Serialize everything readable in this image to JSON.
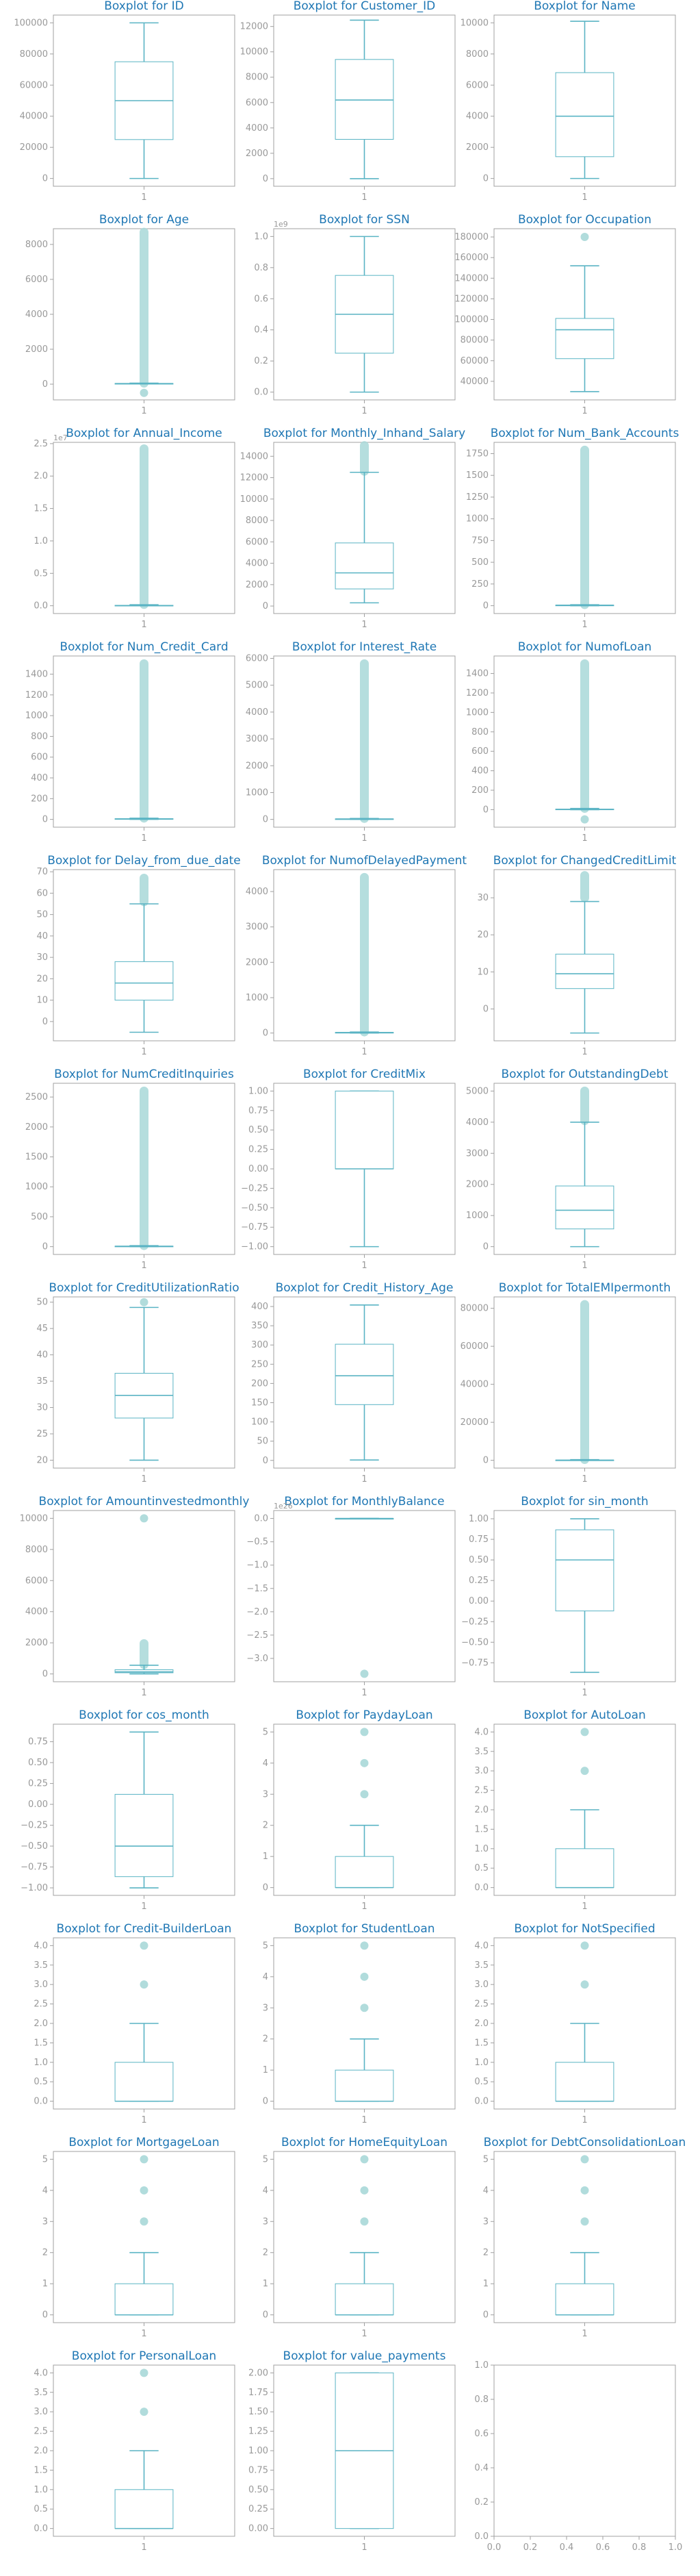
{
  "style": {
    "title_color": "#1f77b4",
    "box_color": "#5ab4c4",
    "flier_color": "#a8d8d8",
    "axis_color": "#a0a0a0",
    "tick_label_color": "#999999"
  },
  "chart_data": [
    {
      "type": "box",
      "title": "Boxplot for ID",
      "category": "1",
      "ylim": [
        -5000,
        105000
      ],
      "yticks": [
        0,
        20000,
        40000,
        60000,
        80000,
        100000
      ],
      "ytick_labels": [
        "0",
        "20000",
        "40000",
        "60000",
        "80000",
        "100000"
      ],
      "min": 0,
      "q1": 25000,
      "median": 50000,
      "q3": 75000,
      "max": 100000,
      "fliers": []
    },
    {
      "type": "box",
      "title": "Boxplot for Customer_ID",
      "category": "1",
      "ylim": [
        -600,
        12900
      ],
      "yticks": [
        0,
        2000,
        4000,
        6000,
        8000,
        10000,
        12000
      ],
      "ytick_labels": [
        "0",
        "2000",
        "4000",
        "6000",
        "8000",
        "10000",
        "12000"
      ],
      "min": 0,
      "q1": 3100,
      "median": 6200,
      "q3": 9400,
      "max": 12500,
      "fliers": []
    },
    {
      "type": "box",
      "title": "Boxplot for Name",
      "category": "1",
      "ylim": [
        -500,
        10500
      ],
      "yticks": [
        0,
        2000,
        4000,
        6000,
        8000,
        10000
      ],
      "ytick_labels": [
        "0",
        "2000",
        "4000",
        "6000",
        "8000",
        "10000"
      ],
      "min": 0,
      "q1": 1400,
      "median": 4000,
      "q3": 6800,
      "max": 10100,
      "fliers": []
    },
    {
      "type": "box",
      "title": "Boxplot for Age",
      "category": "1",
      "ylim": [
        -900,
        8900
      ],
      "yticks": [
        0,
        2000,
        4000,
        6000,
        8000
      ],
      "ytick_labels": [
        "0",
        "2000",
        "4000",
        "6000",
        "8000"
      ],
      "min": 14,
      "q1": 25,
      "median": 33,
      "q3": 42,
      "max": 56,
      "fliers": [
        -500,
        "dense:60:8700"
      ]
    },
    {
      "type": "box",
      "title": "Boxplot for SSN",
      "category": "1",
      "offset_text": "1e9",
      "ylim": [
        -0.05,
        1.05
      ],
      "yticks": [
        0,
        0.2,
        0.4,
        0.6,
        0.8,
        1.0
      ],
      "ytick_labels": [
        "0.0",
        "0.2",
        "0.4",
        "0.6",
        "0.8",
        "1.0"
      ],
      "min": 0.0,
      "q1": 0.25,
      "median": 0.5,
      "q3": 0.75,
      "max": 1.0,
      "fliers": []
    },
    {
      "type": "box",
      "title": "Boxplot for Occupation",
      "category": "1",
      "ylim": [
        22000,
        188000
      ],
      "yticks": [
        40000,
        60000,
        80000,
        100000,
        120000,
        140000,
        160000,
        180000
      ],
      "ytick_labels": [
        "40000",
        "60000",
        "80000",
        "100000",
        "120000",
        "140000",
        "160000",
        "180000"
      ],
      "min": 30000,
      "q1": 62000,
      "median": 90000,
      "q3": 101000,
      "max": 152000,
      "fliers": [
        180000
      ]
    },
    {
      "type": "box",
      "title": "Boxplot for Annual_Income",
      "category": "1",
      "offset_text": "1e7",
      "ylim": [
        -0.12,
        2.52
      ],
      "yticks": [
        0,
        0.5,
        1.0,
        1.5,
        2.0,
        2.5
      ],
      "ytick_labels": [
        "0.0",
        "0.5",
        "1.0",
        "1.5",
        "2.0",
        "2.5"
      ],
      "min": 0.0,
      "q1": 0.002,
      "median": 0.004,
      "q3": 0.007,
      "max": 0.015,
      "fliers": [
        "dense:0.02:2.42"
      ]
    },
    {
      "type": "box",
      "title": "Boxplot for Monthly_Inhand_Salary",
      "category": "1",
      "ylim": [
        -700,
        15300
      ],
      "yticks": [
        0,
        2000,
        4000,
        6000,
        8000,
        10000,
        12000,
        14000
      ],
      "ytick_labels": [
        "0",
        "2000",
        "4000",
        "6000",
        "8000",
        "10000",
        "12000",
        "14000"
      ],
      "min": 300,
      "q1": 1600,
      "median": 3100,
      "q3": 5900,
      "max": 12500,
      "fliers": [
        "dense:12600:15000"
      ]
    },
    {
      "type": "box",
      "title": "Boxplot for Num_Bank_Accounts",
      "category": "1",
      "ylim": [
        -90,
        1880
      ],
      "yticks": [
        0,
        250,
        500,
        750,
        1000,
        1250,
        1500,
        1750
      ],
      "ytick_labels": [
        "0",
        "250",
        "500",
        "750",
        "1000",
        "1250",
        "1500",
        "1750"
      ],
      "min": 0,
      "q1": 3,
      "median": 6,
      "q3": 7,
      "max": 11,
      "fliers": [
        "dense:12:1790"
      ]
    },
    {
      "type": "box",
      "title": "Boxplot for Num_Credit_Card",
      "category": "1",
      "ylim": [
        -75,
        1575
      ],
      "yticks": [
        0,
        200,
        400,
        600,
        800,
        1000,
        1200,
        1400
      ],
      "ytick_labels": [
        "0",
        "200",
        "400",
        "600",
        "800",
        "1000",
        "1200",
        "1400"
      ],
      "min": 0,
      "q1": 4,
      "median": 5,
      "q3": 7,
      "max": 11,
      "fliers": [
        "dense:12:1500"
      ]
    },
    {
      "type": "box",
      "title": "Boxplot for Interest_Rate",
      "category": "1",
      "ylim": [
        -290,
        6090
      ],
      "yticks": [
        0,
        1000,
        2000,
        3000,
        4000,
        5000,
        6000
      ],
      "ytick_labels": [
        "0",
        "1000",
        "2000",
        "3000",
        "4000",
        "5000",
        "6000"
      ],
      "min": 1,
      "q1": 8,
      "median": 14,
      "q3": 20,
      "max": 34,
      "fliers": [
        "dense:35:5800"
      ]
    },
    {
      "type": "box",
      "title": "Boxplot for NumofLoan",
      "category": "1",
      "ylim": [
        -180,
        1580
      ],
      "yticks": [
        0,
        200,
        400,
        600,
        800,
        1000,
        1200,
        1400
      ],
      "ytick_labels": [
        "0",
        "200",
        "400",
        "600",
        "800",
        "1000",
        "1200",
        "1400"
      ],
      "min": 0,
      "q1": 2,
      "median": 3,
      "q3": 6,
      "max": 12,
      "fliers": [
        -100,
        "dense:13:1500"
      ]
    },
    {
      "type": "box",
      "title": "Boxplot for Delay_from_due_date",
      "category": "1",
      "ylim": [
        -9,
        71
      ],
      "yticks": [
        0,
        10,
        20,
        30,
        40,
        50,
        60,
        70
      ],
      "ytick_labels": [
        "0",
        "10",
        "20",
        "30",
        "40",
        "50",
        "60",
        "70"
      ],
      "min": -5,
      "q1": 10,
      "median": 18,
      "q3": 28,
      "max": 55,
      "fliers": [
        "dense:56:67"
      ]
    },
    {
      "type": "box",
      "title": "Boxplot for NumofDelayedPayment",
      "category": "1",
      "ylim": [
        -220,
        4620
      ],
      "yticks": [
        0,
        1000,
        2000,
        3000,
        4000
      ],
      "ytick_labels": [
        "0",
        "1000",
        "2000",
        "3000",
        "4000"
      ],
      "min": 0,
      "q1": 9,
      "median": 14,
      "q3": 18,
      "max": 28,
      "fliers": [
        "dense:30:4400"
      ]
    },
    {
      "type": "box",
      "title": "Boxplot for ChangedCreditLimit",
      "category": "1",
      "ylim": [
        -8.6,
        37.6
      ],
      "yticks": [
        0,
        10,
        20,
        30
      ],
      "ytick_labels": [
        "0",
        "10",
        "20",
        "30"
      ],
      "min": -6.5,
      "q1": 5.5,
      "median": 9.5,
      "q3": 14.8,
      "max": 29,
      "fliers": [
        "dense:30:36"
      ]
    },
    {
      "type": "box",
      "title": "Boxplot for NumCreditInquiries",
      "category": "1",
      "ylim": [
        -130,
        2730
      ],
      "yticks": [
        0,
        500,
        1000,
        1500,
        2000,
        2500
      ],
      "ytick_labels": [
        "0",
        "500",
        "1000",
        "1500",
        "2000",
        "2500"
      ],
      "min": 0,
      "q1": 3,
      "median": 6,
      "q3": 9,
      "max": 17,
      "fliers": [
        "dense:18:2600"
      ]
    },
    {
      "type": "box",
      "title": "Boxplot for CreditMix",
      "category": "1",
      "ylim": [
        -1.1,
        1.1
      ],
      "yticks": [
        -1.0,
        -0.75,
        -0.5,
        -0.25,
        0,
        0.25,
        0.5,
        0.75,
        1.0
      ],
      "ytick_labels": [
        "−1.00",
        "−0.75",
        "−0.50",
        "−0.25",
        "0.00",
        "0.25",
        "0.50",
        "0.75",
        "1.00"
      ],
      "min": -1,
      "q1": 0,
      "median": 0,
      "q3": 1,
      "max": 1,
      "fliers": []
    },
    {
      "type": "box",
      "title": "Boxplot for OutstandingDebt",
      "category": "1",
      "ylim": [
        -250,
        5250
      ],
      "yticks": [
        0,
        1000,
        2000,
        3000,
        4000,
        5000
      ],
      "ytick_labels": [
        "0",
        "1000",
        "2000",
        "3000",
        "4000",
        "5000"
      ],
      "min": 0,
      "q1": 570,
      "median": 1170,
      "q3": 1950,
      "max": 4000,
      "fliers": [
        "dense:4050:5000"
      ]
    },
    {
      "type": "box",
      "title": "Boxplot for CreditUtilizationRatio",
      "category": "1",
      "ylim": [
        18.5,
        51
      ],
      "yticks": [
        20,
        25,
        30,
        35,
        40,
        45,
        50
      ],
      "ytick_labels": [
        "20",
        "25",
        "30",
        "35",
        "40",
        "45",
        "50"
      ],
      "min": 20,
      "q1": 28,
      "median": 32.3,
      "q3": 36.5,
      "max": 49,
      "fliers": [
        50
      ]
    },
    {
      "type": "box",
      "title": "Boxplot for Credit_History_Age",
      "category": "1",
      "ylim": [
        -20,
        425
      ],
      "yticks": [
        0,
        50,
        100,
        150,
        200,
        250,
        300,
        350,
        400
      ],
      "ytick_labels": [
        "0",
        "50",
        "100",
        "150",
        "200",
        "250",
        "300",
        "350",
        "400"
      ],
      "min": 1,
      "q1": 145,
      "median": 220,
      "q3": 302,
      "max": 404,
      "fliers": []
    },
    {
      "type": "box",
      "title": "Boxplot for TotalEMIpermonth",
      "category": "1",
      "ylim": [
        -4100,
        86000
      ],
      "yticks": [
        0,
        20000,
        40000,
        60000,
        80000
      ],
      "ytick_labels": [
        "0",
        "20000",
        "40000",
        "60000",
        "80000"
      ],
      "min": 0,
      "q1": 30,
      "median": 70,
      "q3": 160,
      "max": 350,
      "fliers": [
        "dense:400:82000"
      ]
    },
    {
      "type": "box",
      "title": "Boxplot for Amountinvestedmonthly",
      "category": "1",
      "ylim": [
        -500,
        10500
      ],
      "yticks": [
        0,
        2000,
        4000,
        6000,
        8000,
        10000
      ],
      "ytick_labels": [
        "0",
        "2000",
        "4000",
        "6000",
        "8000",
        "10000"
      ],
      "min": 0,
      "q1": 75,
      "median": 135,
      "q3": 270,
      "max": 560,
      "fliers": [
        "dense:600:1950",
        10000
      ]
    },
    {
      "type": "box",
      "title": "Boxplot for MonthlyBalance",
      "category": "1",
      "offset_text": "1e26",
      "ylim": [
        -3.5,
        0.17
      ],
      "yticks": [
        0,
        -0.5,
        -1.0,
        -1.5,
        -2.0,
        -2.5,
        -3.0
      ],
      "ytick_labels": [
        "0.0",
        "−0.5",
        "−1.0",
        "−1.5",
        "−2.0",
        "−2.5",
        "−3.0"
      ],
      "min": 0,
      "q1": 0,
      "median": 0,
      "q3": 0,
      "max": 0,
      "fliers": [
        -3.33
      ]
    },
    {
      "type": "box",
      "title": "Boxplot for sin_month",
      "category": "1",
      "ylim": [
        -0.98,
        1.1
      ],
      "yticks": [
        -0.75,
        -0.5,
        -0.25,
        0,
        0.25,
        0.5,
        0.75,
        1.0
      ],
      "ytick_labels": [
        "−0.75",
        "−0.50",
        "−0.25",
        "0.00",
        "0.25",
        "0.50",
        "0.75",
        "1.00"
      ],
      "min": -0.866,
      "q1": -0.12,
      "median": 0.5,
      "q3": 0.866,
      "max": 1.0,
      "fliers": []
    },
    {
      "type": "box",
      "title": "Boxplot for cos_month",
      "category": "1",
      "ylim": [
        -1.09,
        0.96
      ],
      "yticks": [
        -1.0,
        -0.75,
        -0.5,
        -0.25,
        0,
        0.25,
        0.5,
        0.75
      ],
      "ytick_labels": [
        "−1.00",
        "−0.75",
        "−0.50",
        "−0.25",
        "0.00",
        "0.25",
        "0.50",
        "0.75"
      ],
      "min": -1.0,
      "q1": -0.866,
      "median": -0.5,
      "q3": 0.12,
      "max": 0.866,
      "fliers": []
    },
    {
      "type": "box",
      "title": "Boxplot for PaydayLoan",
      "category": "1",
      "ylim": [
        -0.25,
        5.25
      ],
      "yticks": [
        0,
        1,
        2,
        3,
        4,
        5
      ],
      "ytick_labels": [
        "0",
        "1",
        "2",
        "3",
        "4",
        "5"
      ],
      "min": 0,
      "q1": 0,
      "median": 0,
      "q3": 1,
      "max": 2,
      "fliers": [
        3,
        4,
        5
      ]
    },
    {
      "type": "box",
      "title": "Boxplot for AutoLoan",
      "category": "1",
      "ylim": [
        -0.2,
        4.2
      ],
      "yticks": [
        0,
        0.5,
        1,
        1.5,
        2,
        2.5,
        3,
        3.5,
        4
      ],
      "ytick_labels": [
        "0.0",
        "0.5",
        "1.0",
        "1.5",
        "2.0",
        "2.5",
        "3.0",
        "3.5",
        "4.0"
      ],
      "min": 0,
      "q1": 0,
      "median": 0,
      "q3": 1,
      "max": 2,
      "fliers": [
        3,
        4
      ]
    },
    {
      "type": "box",
      "title": "Boxplot for Credit-BuilderLoan",
      "category": "1",
      "ylim": [
        -0.2,
        4.2
      ],
      "yticks": [
        0,
        0.5,
        1,
        1.5,
        2,
        2.5,
        3,
        3.5,
        4
      ],
      "ytick_labels": [
        "0.0",
        "0.5",
        "1.0",
        "1.5",
        "2.0",
        "2.5",
        "3.0",
        "3.5",
        "4.0"
      ],
      "min": 0,
      "q1": 0,
      "median": 0,
      "q3": 1,
      "max": 2,
      "fliers": [
        3,
        4
      ]
    },
    {
      "type": "box",
      "title": "Boxplot for StudentLoan",
      "category": "1",
      "ylim": [
        -0.25,
        5.25
      ],
      "yticks": [
        0,
        1,
        2,
        3,
        4,
        5
      ],
      "ytick_labels": [
        "0",
        "1",
        "2",
        "3",
        "4",
        "5"
      ],
      "min": 0,
      "q1": 0,
      "median": 0,
      "q3": 1,
      "max": 2,
      "fliers": [
        3,
        4,
        5
      ]
    },
    {
      "type": "box",
      "title": "Boxplot for NotSpecified",
      "category": "1",
      "ylim": [
        -0.2,
        4.2
      ],
      "yticks": [
        0,
        0.5,
        1,
        1.5,
        2,
        2.5,
        3,
        3.5,
        4
      ],
      "ytick_labels": [
        "0.0",
        "0.5",
        "1.0",
        "1.5",
        "2.0",
        "2.5",
        "3.0",
        "3.5",
        "4.0"
      ],
      "min": 0,
      "q1": 0,
      "median": 0,
      "q3": 1,
      "max": 2,
      "fliers": [
        3,
        4
      ]
    },
    {
      "type": "box",
      "title": "Boxplot for MortgageLoan",
      "category": "1",
      "ylim": [
        -0.25,
        5.25
      ],
      "yticks": [
        0,
        1,
        2,
        3,
        4,
        5
      ],
      "ytick_labels": [
        "0",
        "1",
        "2",
        "3",
        "4",
        "5"
      ],
      "min": 0,
      "q1": 0,
      "median": 0,
      "q3": 1,
      "max": 2,
      "fliers": [
        3,
        4,
        5
      ]
    },
    {
      "type": "box",
      "title": "Boxplot for HomeEquityLoan",
      "category": "1",
      "ylim": [
        -0.25,
        5.25
      ],
      "yticks": [
        0,
        1,
        2,
        3,
        4,
        5
      ],
      "ytick_labels": [
        "0",
        "1",
        "2",
        "3",
        "4",
        "5"
      ],
      "min": 0,
      "q1": 0,
      "median": 0,
      "q3": 1,
      "max": 2,
      "fliers": [
        3,
        4,
        5
      ]
    },
    {
      "type": "box",
      "title": "Boxplot for DebtConsolidationLoan",
      "category": "1",
      "ylim": [
        -0.25,
        5.25
      ],
      "yticks": [
        0,
        1,
        2,
        3,
        4,
        5
      ],
      "ytick_labels": [
        "0",
        "1",
        "2",
        "3",
        "4",
        "5"
      ],
      "min": 0,
      "q1": 0,
      "median": 0,
      "q3": 1,
      "max": 2,
      "fliers": [
        3,
        4,
        5
      ]
    },
    {
      "type": "box",
      "title": "Boxplot for PersonalLoan",
      "category": "1",
      "ylim": [
        -0.2,
        4.2
      ],
      "yticks": [
        0,
        0.5,
        1,
        1.5,
        2,
        2.5,
        3,
        3.5,
        4
      ],
      "ytick_labels": [
        "0.0",
        "0.5",
        "1.0",
        "1.5",
        "2.0",
        "2.5",
        "3.0",
        "3.5",
        "4.0"
      ],
      "min": 0,
      "q1": 0,
      "median": 0,
      "q3": 1,
      "max": 2,
      "fliers": [
        3,
        4
      ]
    },
    {
      "type": "box",
      "title": "Boxplot for value_payments",
      "category": "1",
      "ylim": [
        -0.1,
        2.1
      ],
      "yticks": [
        0,
        0.25,
        0.5,
        0.75,
        1.0,
        1.25,
        1.5,
        1.75,
        2.0
      ],
      "ytick_labels": [
        "0.00",
        "0.25",
        "0.50",
        "0.75",
        "1.00",
        "1.25",
        "1.50",
        "1.75",
        "2.00"
      ],
      "min": 0,
      "q1": 0,
      "median": 1,
      "q3": 2,
      "max": 2,
      "fliers": []
    },
    {
      "type": "empty",
      "title": "",
      "xlim": [
        0,
        1
      ],
      "ylim": [
        0,
        1
      ],
      "xticks": [
        0,
        0.2,
        0.4,
        0.6,
        0.8,
        1.0
      ],
      "xtick_labels": [
        "0.0",
        "0.2",
        "0.4",
        "0.6",
        "0.8",
        "1.0"
      ],
      "yticks": [
        0,
        0.2,
        0.4,
        0.6,
        0.8,
        1.0
      ],
      "ytick_labels": [
        "0.0",
        "0.2",
        "0.4",
        "0.6",
        "0.8",
        "1.0"
      ]
    }
  ]
}
